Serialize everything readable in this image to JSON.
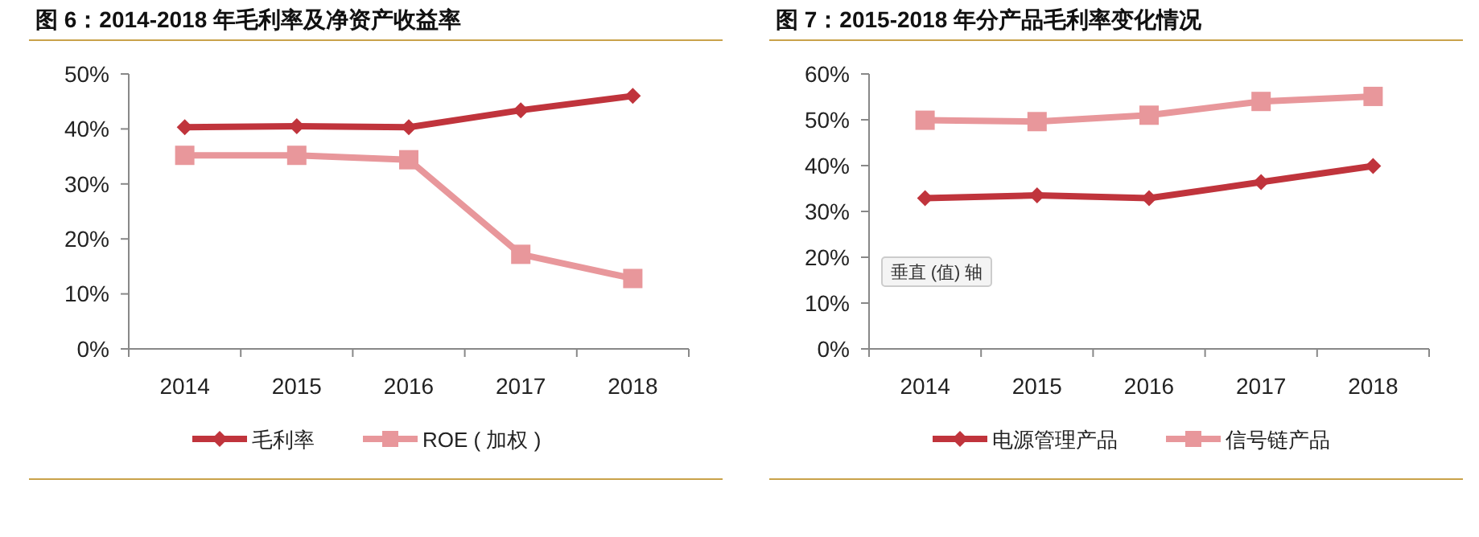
{
  "chart_data": [
    {
      "type": "line",
      "title": "图 6：2014-2018 年毛利率及净资产收益率",
      "categories": [
        "2014",
        "2015",
        "2016",
        "2017",
        "2018"
      ],
      "series": [
        {
          "name": "毛利率",
          "color": "#c0343c",
          "marker": "diamond",
          "values": [
            40.3,
            40.5,
            40.3,
            43.4,
            46.0
          ]
        },
        {
          "name": "ROE ( 加权 )",
          "color": "#e8979b",
          "marker": "square",
          "values": [
            35.2,
            35.2,
            34.4,
            17.2,
            12.8
          ]
        }
      ],
      "ylim": [
        0,
        50
      ],
      "yticks": [
        {
          "value": 0,
          "label": "0%"
        },
        {
          "value": 10,
          "label": "10%"
        },
        {
          "value": 20,
          "label": "20%"
        },
        {
          "value": 30,
          "label": "30%"
        },
        {
          "value": 40,
          "label": "40%"
        },
        {
          "value": 50,
          "label": "50%"
        }
      ],
      "legend": "bottom"
    },
    {
      "type": "line",
      "title": "图 7：2015-2018 年分产品毛利率变化情况",
      "categories": [
        "2014",
        "2015",
        "2016",
        "2017",
        "2018"
      ],
      "series": [
        {
          "name": "电源管理产品",
          "color": "#c0343c",
          "marker": "diamond",
          "values": [
            32.9,
            33.5,
            32.9,
            36.4,
            39.9
          ]
        },
        {
          "name": "信号链产品",
          "color": "#e8979b",
          "marker": "square",
          "values": [
            49.9,
            49.6,
            51.0,
            54.0,
            55.1
          ]
        }
      ],
      "ylim": [
        0,
        60
      ],
      "yticks": [
        {
          "value": 0,
          "label": "0%"
        },
        {
          "value": 10,
          "label": "10%"
        },
        {
          "value": 20,
          "label": "20%"
        },
        {
          "value": 30,
          "label": "30%"
        },
        {
          "value": 40,
          "label": "40%"
        },
        {
          "value": 50,
          "label": "50%"
        },
        {
          "value": 60,
          "label": "60%"
        }
      ],
      "legend": "bottom",
      "annotations": [
        "垂直 (值) 轴"
      ]
    }
  ]
}
